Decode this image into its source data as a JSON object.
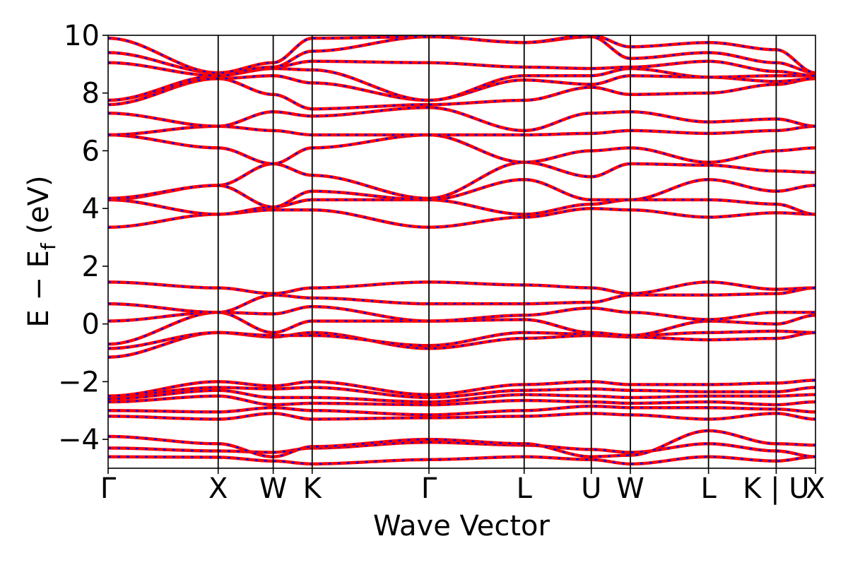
{
  "chart_data": {
    "type": "line",
    "title": "",
    "xlabel": "Wave Vector",
    "ylabel": "E − E_f (eV)",
    "ylabel_main": "E − E",
    "ylabel_sub": "f",
    "ylabel_tail": " (eV)",
    "ylim": [
      -5,
      10
    ],
    "yticks": [
      -4,
      -2,
      0,
      2,
      4,
      6,
      8,
      10
    ],
    "ytick_labels": [
      "−4",
      "−2",
      "0",
      "2",
      "4",
      "6",
      "8",
      "10"
    ],
    "kpath": {
      "labels": [
        "Γ",
        "X",
        "W",
        "K",
        "Γ",
        "L",
        "U",
        "W",
        "L",
        "K | U",
        "X"
      ],
      "positions": [
        0,
        1.0,
        1.5,
        1.854,
        2.915,
        3.78,
        4.39,
        4.745,
        5.455,
        6.07,
        6.427
      ]
    },
    "grid": false,
    "legend": "none",
    "series_styles": [
      {
        "color": "#ff0000",
        "style": "solid"
      },
      {
        "color": "#0000ff",
        "style": "dashed"
      }
    ],
    "bands": [
      [
        -4.6,
        -4.62,
        -4.75,
        -4.85,
        -4.7,
        -4.6,
        -4.7,
        -4.85,
        -4.6,
        -4.75,
        -4.6
      ],
      [
        -4.3,
        -4.4,
        -4.45,
        -4.3,
        -4.1,
        -4.2,
        -4.35,
        -4.45,
        -4.15,
        -4.4,
        -4.6
      ],
      [
        -3.9,
        -4.15,
        -4.6,
        -4.25,
        -4.0,
        -4.15,
        -4.6,
        -4.55,
        -3.7,
        -4.15,
        -4.2
      ],
      [
        -3.2,
        -3.3,
        -3.1,
        -3.3,
        -3.25,
        -3.2,
        -3.1,
        -3.15,
        -3.3,
        -3.1,
        -3.3
      ],
      [
        -3.0,
        -3.05,
        -2.9,
        -3.0,
        -3.15,
        -3.0,
        -2.85,
        -2.9,
        -2.9,
        -2.95,
        -3.05
      ],
      [
        -2.7,
        -2.5,
        -2.8,
        -2.75,
        -2.8,
        -2.65,
        -2.7,
        -2.75,
        -2.7,
        -2.8,
        -2.7
      ],
      [
        -2.6,
        -2.3,
        -2.55,
        -2.55,
        -2.7,
        -2.45,
        -2.5,
        -2.55,
        -2.5,
        -2.5,
        -2.45
      ],
      [
        -2.5,
        -2.2,
        -2.25,
        -2.2,
        -2.55,
        -2.3,
        -2.25,
        -2.3,
        -2.35,
        -2.35,
        -2.2
      ],
      [
        -2.5,
        -2.0,
        -2.15,
        -2.0,
        -2.45,
        -2.1,
        -2.0,
        -2.1,
        -2.1,
        -2.05,
        -1.95
      ],
      [
        -1.15,
        -0.3,
        -0.45,
        -0.3,
        -0.85,
        -0.5,
        -0.4,
        -0.45,
        -0.55,
        -0.5,
        -0.3
      ],
      [
        -0.85,
        -0.3,
        -0.4,
        -0.4,
        -0.75,
        -0.3,
        -0.35,
        -0.4,
        -0.3,
        -0.25,
        -0.3
      ],
      [
        -0.7,
        0.4,
        -0.3,
        0.1,
        0.1,
        0.15,
        -0.3,
        -0.4,
        0.1,
        0.0,
        0.3
      ],
      [
        0.1,
        0.4,
        0.35,
        0.6,
        0.1,
        0.3,
        0.55,
        0.4,
        0.15,
        0.4,
        0.4
      ],
      [
        0.7,
        0.4,
        1.0,
        0.9,
        0.7,
        0.7,
        0.75,
        1.0,
        1.0,
        1.05,
        1.25
      ],
      [
        1.45,
        1.25,
        1.05,
        1.25,
        1.45,
        1.35,
        1.25,
        1.05,
        1.45,
        1.2,
        1.25
      ],
      [
        3.35,
        3.8,
        3.95,
        3.95,
        3.35,
        3.7,
        4.0,
        3.95,
        3.7,
        3.85,
        3.8
      ],
      [
        4.3,
        3.8,
        4.05,
        4.3,
        4.3,
        3.8,
        4.15,
        4.3,
        4.3,
        4.15,
        3.8
      ],
      [
        4.3,
        4.8,
        4.05,
        4.6,
        4.3,
        5.0,
        4.3,
        4.3,
        5.0,
        4.6,
        4.8
      ],
      [
        4.35,
        4.8,
        5.55,
        5.15,
        4.35,
        5.6,
        5.1,
        5.55,
        5.5,
        5.3,
        5.25
      ],
      [
        6.55,
        6.1,
        5.55,
        6.1,
        6.55,
        5.6,
        6.0,
        6.1,
        5.6,
        6.0,
        6.1
      ],
      [
        6.55,
        6.85,
        6.7,
        6.55,
        6.55,
        6.55,
        6.6,
        6.7,
        6.6,
        6.7,
        6.85
      ],
      [
        7.3,
        6.85,
        7.35,
        7.2,
        7.5,
        6.7,
        7.3,
        7.35,
        7.0,
        7.1,
        6.85
      ],
      [
        7.6,
        8.5,
        7.95,
        7.45,
        7.6,
        7.75,
        8.2,
        7.95,
        8.0,
        8.3,
        8.5
      ],
      [
        7.75,
        8.5,
        8.6,
        8.35,
        7.75,
        8.45,
        8.3,
        8.6,
        8.55,
        8.4,
        8.5
      ],
      [
        7.75,
        8.6,
        8.85,
        8.8,
        7.75,
        8.6,
        8.6,
        8.85,
        8.55,
        8.6,
        8.6
      ],
      [
        9.05,
        8.6,
        8.9,
        9.1,
        9.05,
        8.9,
        8.85,
        8.9,
        9.1,
        8.75,
        8.6
      ],
      [
        9.4,
        8.7,
        8.9,
        9.45,
        9.95,
        9.75,
        9.95,
        9.2,
        9.4,
        9.05,
        8.7
      ],
      [
        9.9,
        8.7,
        9.05,
        9.9,
        9.95,
        9.75,
        10.0,
        9.6,
        9.75,
        9.5,
        8.7
      ]
    ]
  }
}
